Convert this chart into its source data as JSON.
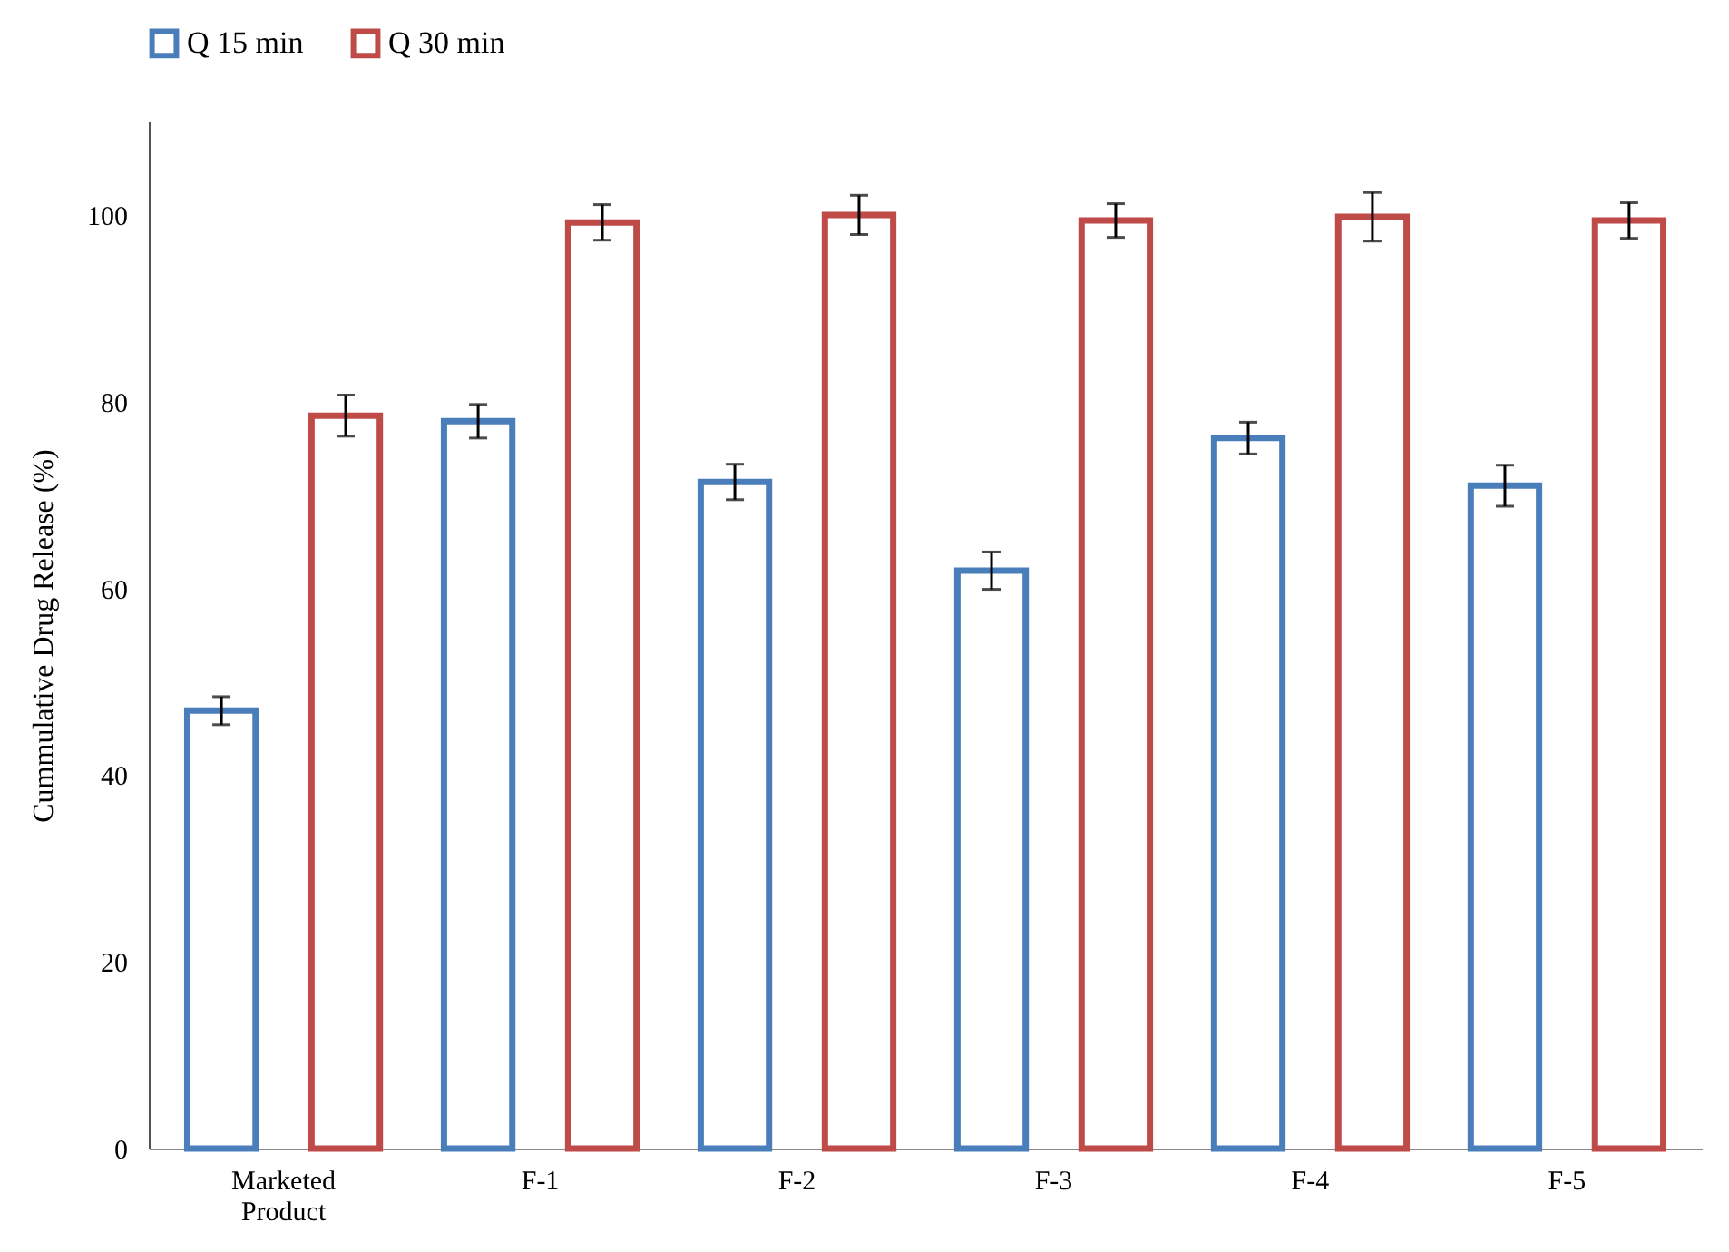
{
  "chart_data": {
    "type": "bar",
    "ylabel": "Cummulative  Drug Release (%)",
    "categories": [
      "Marketed Product",
      "F-1",
      "F-2",
      "F-3",
      "F-4",
      "F-5"
    ],
    "series": [
      {
        "name": "Q 15 min",
        "color": "#4a7ebb",
        "values": [
          46.9,
          77.9,
          71.4,
          61.9,
          76.1,
          71.0
        ],
        "errors": [
          1.5,
          1.8,
          1.9,
          2.0,
          1.7,
          2.2
        ]
      },
      {
        "name": "Q 30 min",
        "color": "#be4b48",
        "values": [
          78.5,
          99.2,
          100.0,
          99.4,
          99.8,
          99.4
        ],
        "errors": [
          2.2,
          1.9,
          2.1,
          1.8,
          2.6,
          1.9
        ]
      }
    ],
    "ylim": [
      0,
      110
    ],
    "yticks": [
      0,
      20,
      40,
      60,
      80,
      100
    ],
    "grid": false,
    "legend": "top"
  }
}
